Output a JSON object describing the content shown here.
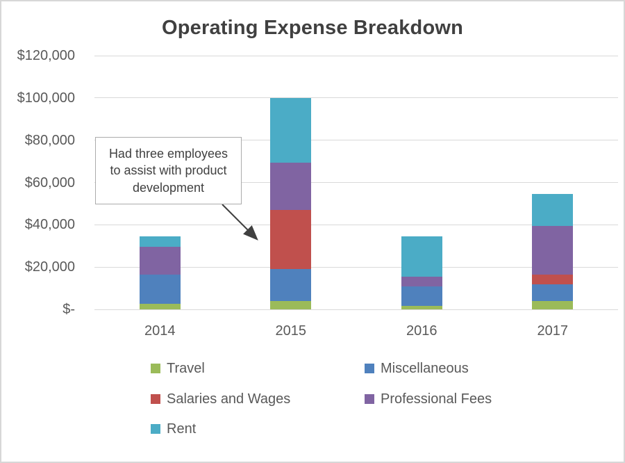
{
  "chart_data": {
    "type": "bar",
    "stacked": true,
    "title": "Operating Expense Breakdown",
    "categories": [
      "2014",
      "2015",
      "2016",
      "2017"
    ],
    "series": [
      {
        "name": "Travel",
        "color": "#9BBB59",
        "values": [
          2500,
          4000,
          1500,
          4000
        ]
      },
      {
        "name": "Miscellaneous",
        "color": "#4F81BD",
        "values": [
          14000,
          15000,
          9500,
          8000
        ]
      },
      {
        "name": "Salaries and Wages",
        "color": "#C0504D",
        "values": [
          0,
          28000,
          0,
          4500
        ]
      },
      {
        "name": "Professional Fees",
        "color": "#8064A2",
        "values": [
          13000,
          22500,
          4500,
          23000
        ]
      },
      {
        "name": "Rent",
        "color": "#4BACC6",
        "values": [
          5000,
          30500,
          19000,
          15000
        ]
      }
    ],
    "totals": [
      34500,
      100000,
      34500,
      54500
    ],
    "y_ticks": [
      {
        "value": 0,
        "label": "$-"
      },
      {
        "value": 20000,
        "label": "$20,000"
      },
      {
        "value": 40000,
        "label": "$40,000"
      },
      {
        "value": 60000,
        "label": "$60,000"
      },
      {
        "value": 80000,
        "label": "$80,000"
      },
      {
        "value": 100000,
        "label": "$100,000"
      },
      {
        "value": 120000,
        "label": "$120,000"
      }
    ],
    "ylim": [
      0,
      120000
    ],
    "grid": true,
    "legend_position": "bottom",
    "annotation": {
      "text": "Had three employees to assist with product development",
      "target_category": "2015"
    },
    "colors": {
      "gridline": "#d9d9d9",
      "axis_text": "#595959",
      "title_text": "#404040",
      "arrow": "#404040"
    }
  }
}
